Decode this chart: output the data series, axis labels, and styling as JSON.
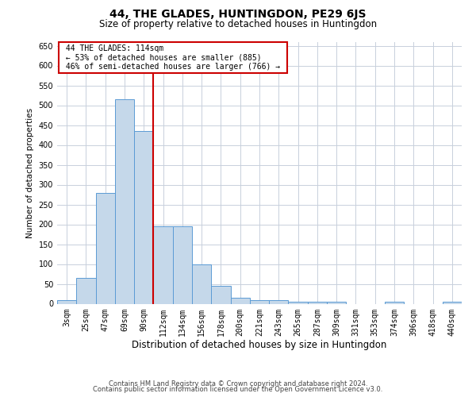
{
  "title": "44, THE GLADES, HUNTINGDON, PE29 6JS",
  "subtitle": "Size of property relative to detached houses in Huntingdon",
  "xlabel": "Distribution of detached houses by size in Huntingdon",
  "ylabel": "Number of detached properties",
  "footer_line1": "Contains HM Land Registry data © Crown copyright and database right 2024.",
  "footer_line2": "Contains public sector information licensed under the Open Government Licence v3.0.",
  "annotation_line1": "44 THE GLADES: 114sqm",
  "annotation_line2": "← 53% of detached houses are smaller (885)",
  "annotation_line3": "46% of semi-detached houses are larger (766) →",
  "bar_labels": [
    "3sqm",
    "25sqm",
    "47sqm",
    "69sqm",
    "90sqm",
    "112sqm",
    "134sqm",
    "156sqm",
    "178sqm",
    "200sqm",
    "221sqm",
    "243sqm",
    "265sqm",
    "287sqm",
    "309sqm",
    "331sqm",
    "353sqm",
    "374sqm",
    "396sqm",
    "418sqm",
    "440sqm"
  ],
  "bar_values": [
    10,
    65,
    280,
    515,
    435,
    195,
    195,
    100,
    45,
    15,
    10,
    10,
    5,
    5,
    5,
    0,
    0,
    5,
    0,
    0,
    5
  ],
  "bar_color": "#c5d8ea",
  "bar_edge_color": "#5b9bd5",
  "vline_color": "#cc0000",
  "vline_index": 5,
  "ylim": [
    0,
    660
  ],
  "yticks": [
    0,
    50,
    100,
    150,
    200,
    250,
    300,
    350,
    400,
    450,
    500,
    550,
    600,
    650
  ],
  "bg_color": "#ffffff",
  "grid_color": "#c8d0dc",
  "annotation_box_color": "#cc0000",
  "title_fontsize": 10,
  "subtitle_fontsize": 8.5,
  "xlabel_fontsize": 8.5,
  "ylabel_fontsize": 7.5,
  "tick_fontsize": 7,
  "annot_fontsize": 7,
  "footer_fontsize": 6
}
